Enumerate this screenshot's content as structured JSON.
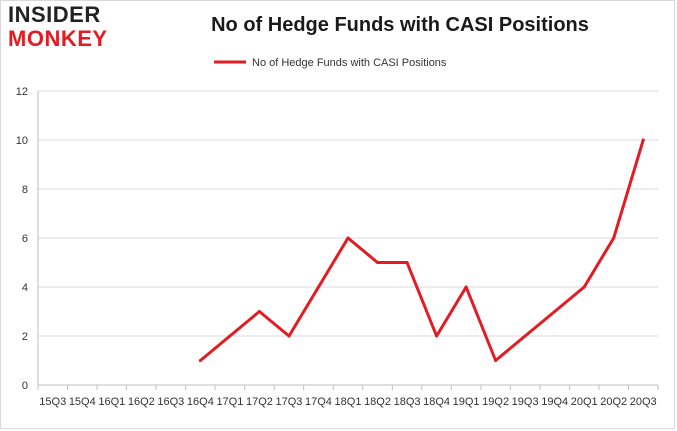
{
  "brand": {
    "line1": "INSIDER",
    "line2": "MONKEY",
    "colors": {
      "dark": "#222222",
      "red": "#e31b23"
    }
  },
  "chart_data": {
    "type": "line",
    "title": "No of Hedge Funds with CASI Positions",
    "xlabel": "",
    "ylabel": "",
    "categories": [
      "15Q3",
      "15Q4",
      "16Q1",
      "16Q2",
      "16Q3",
      "16Q4",
      "17Q1",
      "17Q2",
      "17Q3",
      "17Q4",
      "18Q1",
      "18Q2",
      "18Q3",
      "18Q4",
      "19Q1",
      "19Q2",
      "19Q3",
      "19Q4",
      "20Q1",
      "20Q2",
      "20Q3"
    ],
    "series": [
      {
        "name": "No of Hedge Funds with CASI Positions",
        "color": "#e31b23",
        "values": [
          null,
          null,
          null,
          null,
          null,
          1,
          2,
          3,
          2,
          4,
          6,
          5,
          5,
          2,
          4,
          1,
          2,
          3,
          4,
          6,
          10
        ]
      }
    ],
    "ylim": [
      0,
      12
    ],
    "yticks": [
      0,
      2,
      4,
      6,
      8,
      10,
      12
    ],
    "grid": true,
    "legend": "top-center"
  }
}
